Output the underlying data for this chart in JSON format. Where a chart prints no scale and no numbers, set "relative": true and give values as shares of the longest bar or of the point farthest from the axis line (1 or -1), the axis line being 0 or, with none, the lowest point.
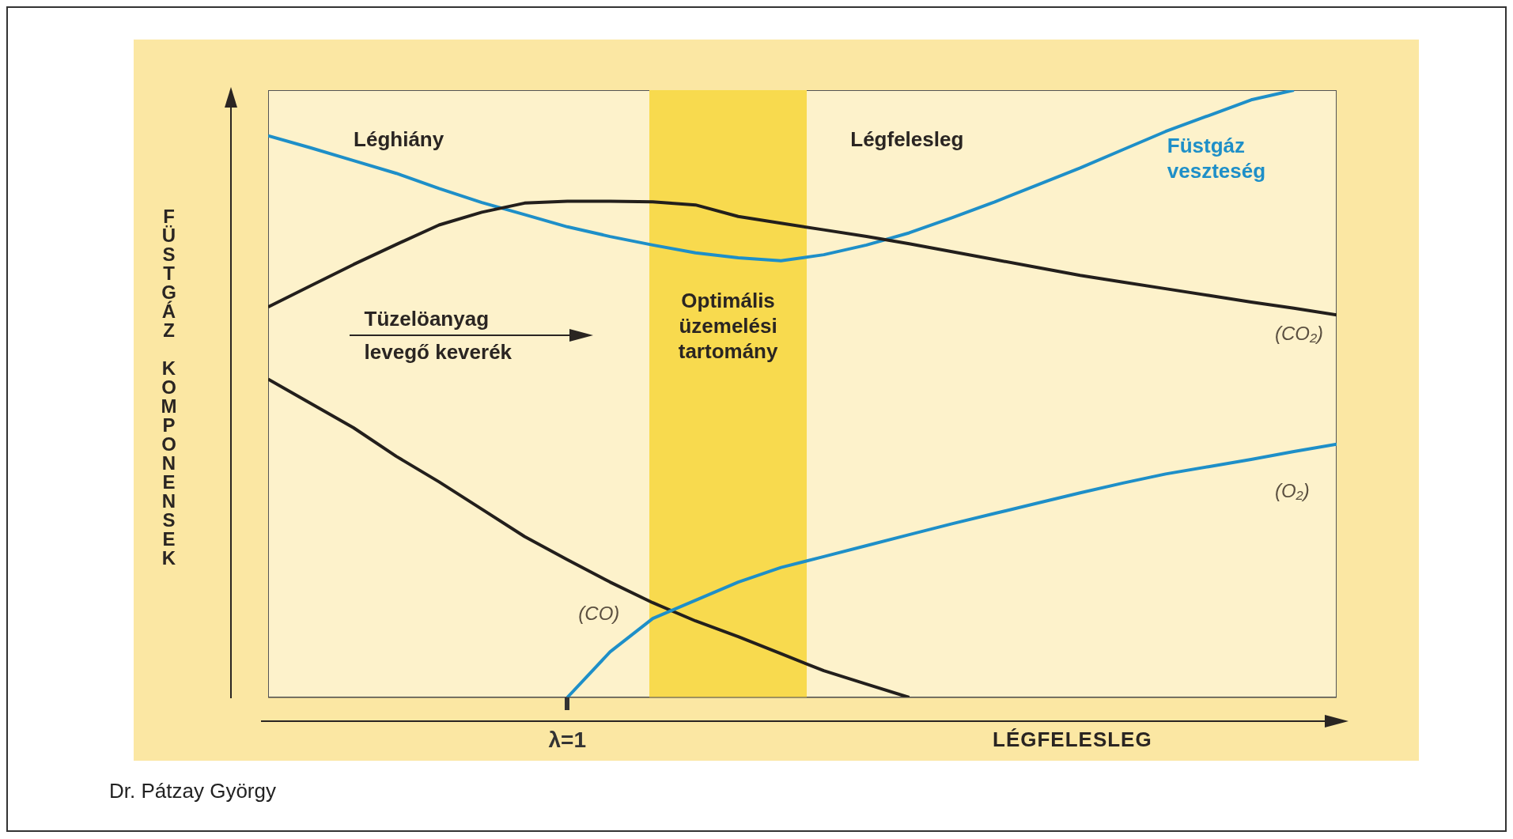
{
  "chart_data": {
    "type": "line",
    "relative": true,
    "ylabel": "FÜSTGÁZ KOMPONENSEK",
    "xlabel": "LÉGFELESLEG",
    "marker": "none",
    "line_style": "solid",
    "categories": [
      null,
      null,
      null,
      null,
      null,
      null,
      null,
      null,
      null,
      null,
      null,
      null,
      null,
      null,
      null,
      null,
      null,
      null,
      null,
      null,
      null,
      null,
      null,
      null,
      null,
      null
    ],
    "series": [
      {
        "name": "Füstgáz veszteség",
        "color": "#1e8fc8",
        "values": [
          0.925,
          0.905,
          0.884,
          0.863,
          0.838,
          0.815,
          0.795,
          0.775,
          0.759,
          0.745,
          0.732,
          0.724,
          0.719,
          0.729,
          0.745,
          0.765,
          0.79,
          0.816,
          0.844,
          0.872,
          0.902,
          0.932,
          0.958,
          0.984,
          1,
          null
        ]
      },
      {
        "name": "(CO₂)",
        "color": "#231f1c",
        "values": [
          0.643,
          0.678,
          0.713,
          0.746,
          0.778,
          0.799,
          0.814,
          0.817,
          0.817,
          0.816,
          0.811,
          0.792,
          0.781,
          0.77,
          0.759,
          0.747,
          0.734,
          0.721,
          0.708,
          0.695,
          0.684,
          0.673,
          0.662,
          0.651,
          0.641,
          0.63
        ]
      },
      {
        "name": "(CO)",
        "color": "#231f1c",
        "values": [
          0.524,
          0.484,
          0.444,
          0.397,
          0.355,
          0.31,
          0.265,
          0.227,
          0.19,
          0.156,
          0.126,
          0.1,
          0.072,
          0.044,
          0.022,
          0,
          null,
          null,
          null,
          null,
          null,
          null,
          null,
          null,
          null,
          null
        ]
      },
      {
        "name": "(O₂)",
        "color": "#1e8fc8",
        "values": [
          null,
          null,
          null,
          null,
          null,
          null,
          null,
          0,
          0.075,
          0.13,
          0.16,
          0.19,
          0.214,
          0.232,
          0.25,
          0.268,
          0.286,
          0.303,
          0.32,
          0.337,
          0.353,
          0.368,
          0.38,
          0.392,
          0.405,
          0.417
        ]
      }
    ],
    "annotations": [
      "λ=1",
      "Optimális üzemelési tartomány",
      "Léghiány",
      "Légfelesleg",
      "Tüzelöanyag levegő keverék",
      "Dr. Pátzay György"
    ]
  }
}
